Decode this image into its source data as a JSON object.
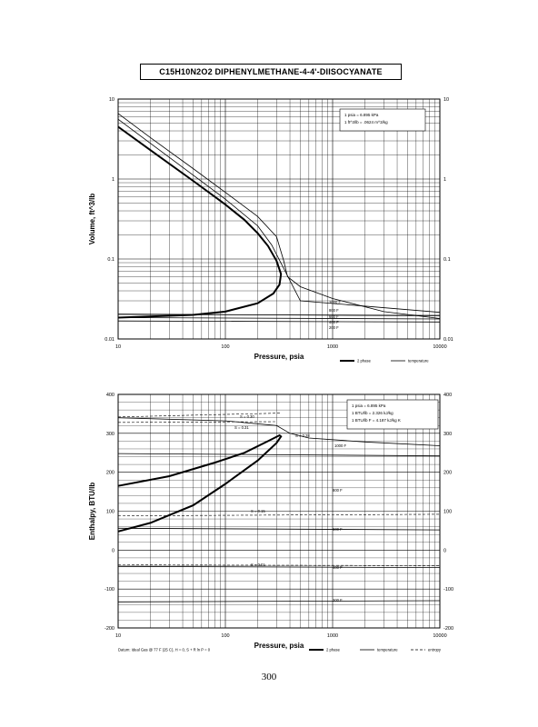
{
  "title": "C15H10N2O2     DIPHENYLMETHANE-4-4'-DIISOCYANATE",
  "page_number": "300",
  "chart_data": [
    {
      "type": "line",
      "name": "volume",
      "xscale": "log",
      "yscale": "log",
      "xlim": [
        10,
        10000
      ],
      "ylim": [
        0.01,
        10
      ],
      "xlabel": "Pressure,  psia",
      "ylabel": "Volume, ft^3/lb",
      "xticks": [
        "10",
        "100",
        "1000",
        "10000"
      ],
      "yticks": [
        "0.01",
        "0.1",
        "1",
        "10"
      ],
      "notes": [
        "1 psia  =  6.895 kPa",
        "1 ft^3/lb  =  .0624 m^3/kg"
      ],
      "legend": [
        "2 phase",
        "temperature"
      ],
      "isotherm_labels": [
        "1000 F",
        "800 F",
        "600 F",
        "400 F",
        "200 F"
      ],
      "series": [
        {
          "name": "2 phase",
          "points": [
            [
              10,
              4.5
            ],
            [
              20,
              2.3
            ],
            [
              50,
              0.95
            ],
            [
              100,
              0.48
            ],
            [
              150,
              0.31
            ],
            [
              200,
              0.21
            ],
            [
              250,
              0.145
            ],
            [
              300,
              0.095
            ],
            [
              330,
              0.065
            ],
            [
              320,
              0.048
            ],
            [
              280,
              0.037
            ],
            [
              200,
              0.028
            ],
            [
              100,
              0.022
            ],
            [
              50,
              0.02
            ],
            [
              10,
              0.0185
            ]
          ]
        },
        {
          "name": "1000 F",
          "points": [
            [
              10,
              6.6
            ],
            [
              20,
              3.3
            ],
            [
              50,
              1.35
            ],
            [
              100,
              0.68
            ],
            [
              200,
              0.34
            ],
            [
              300,
              0.19
            ],
            [
              350,
              0.095
            ],
            [
              380,
              0.06
            ],
            [
              500,
              0.045
            ],
            [
              1000,
              0.032
            ],
            [
              3000,
              0.022
            ],
            [
              10000,
              0.018
            ]
          ]
        },
        {
          "name": "800 F",
          "points": [
            [
              10,
              5.6
            ],
            [
              20,
              2.8
            ],
            [
              50,
              1.12
            ],
            [
              100,
              0.56
            ],
            [
              200,
              0.26
            ],
            [
              270,
              0.15
            ],
            [
              500,
              0.03
            ],
            [
              10000,
              0.0215
            ]
          ]
        },
        {
          "name": "600 F",
          "points": [
            [
              10,
              0.0205
            ],
            [
              10000,
              0.0195
            ]
          ]
        },
        {
          "name": "400 F",
          "points": [
            [
              10,
              0.0185
            ],
            [
              10000,
              0.0178
            ]
          ]
        },
        {
          "name": "200 F",
          "points": [
            [
              10,
              0.0168
            ],
            [
              10000,
              0.0163
            ]
          ]
        }
      ]
    },
    {
      "type": "line",
      "name": "enthalpy",
      "xscale": "log",
      "yscale": "linear",
      "xlim": [
        10,
        10000
      ],
      "ylim": [
        -200,
        400
      ],
      "xlabel": "Pressure,  psia",
      "ylabel": "Enthalpy, BTU/lb",
      "xticks": [
        "10",
        "100",
        "1000",
        "10000"
      ],
      "yticks": [
        "-200",
        "-100",
        "0",
        "100",
        "200",
        "300",
        "400"
      ],
      "notes": [
        "1 psia  =  6.895 kPa",
        "1 BTU/lb  =  2.326 kJ/kg",
        "1 BTU/lb F  =  4.187 kJ/kg K"
      ],
      "legend": [
        "2 phase",
        "temperature",
        "entropy"
      ],
      "datum": "Datum: Ideal Gas @ 77 F (25 C),  H = 0,  S + R ln P = 0",
      "isotherm_labels": [
        "1000 F",
        "800 F",
        "600 F",
        "400 F",
        "200 F"
      ],
      "entropy_labels": [
        "S = 0.30",
        "S = 0.31",
        "S = 0.28",
        "S = 0.15",
        "S = 0.01"
      ],
      "series": [
        {
          "name": "2 phase",
          "points": [
            [
              10,
              48
            ],
            [
              20,
              70
            ],
            [
              50,
              115
            ],
            [
              100,
              170
            ],
            [
              200,
              230
            ],
            [
              300,
              275
            ],
            [
              330,
              292
            ],
            [
              320,
              295
            ],
            [
              250,
              280
            ],
            [
              150,
              250
            ],
            [
              80,
              225
            ],
            [
              30,
              190
            ],
            [
              10,
              165
            ]
          ]
        },
        {
          "name": "1000 F",
          "points": [
            [
              10,
              340
            ],
            [
              100,
              332
            ],
            [
              300,
              320
            ],
            [
              400,
              300
            ],
            [
              600,
              288
            ],
            [
              2000,
              278
            ],
            [
              10000,
              268
            ]
          ]
        },
        {
          "name": "800 F",
          "points": [
            [
              10,
              248
            ],
            [
              10000,
              242
            ]
          ]
        },
        {
          "name": "600 F",
          "points": [
            [
              10,
              56
            ],
            [
              10000,
              52
            ]
          ]
        },
        {
          "name": "400 F",
          "points": [
            [
              10,
              -42
            ],
            [
              10000,
              -45
            ]
          ]
        },
        {
          "name": "200 F",
          "points": [
            [
              10,
              -133
            ],
            [
              10000,
              -130
            ]
          ]
        }
      ]
    }
  ]
}
